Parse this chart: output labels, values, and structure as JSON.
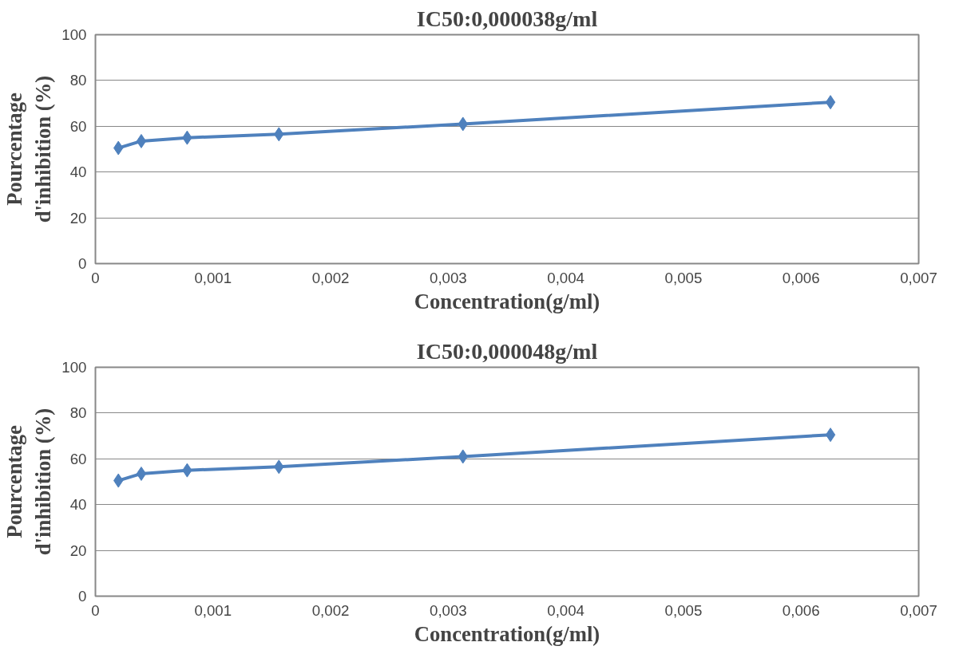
{
  "chart_data": [
    {
      "type": "line",
      "title": "IC50:0,000038g/ml",
      "xlabel": "Concentration(g/ml)",
      "ylabel": "Pourcentage\nd'inhibition (%)",
      "x": [
        0.000195,
        0.00039,
        0.00078,
        0.00156,
        0.003125,
        0.00625
      ],
      "series": [
        {
          "color": "#4f81bd",
          "values": [
            50.5,
            53.5,
            55,
            56.5,
            61,
            70.5
          ]
        }
      ],
      "xlim": [
        0,
        0.007
      ],
      "xticks": [
        0,
        {
          "value": 0.001,
          "label": "0,001"
        },
        {
          "value": 0.002,
          "label": "0,002"
        },
        {
          "value": 0.003,
          "label": "0,003"
        },
        {
          "value": 0.004,
          "label": "0,004"
        },
        {
          "value": 0.005,
          "label": "0,005"
        },
        {
          "value": 0.006,
          "label": "0,006"
        },
        {
          "value": 0.007,
          "label": "0,007"
        }
      ],
      "ylim": [
        0,
        100
      ],
      "yticks": [
        0,
        20,
        40,
        60,
        80,
        100
      ],
      "grid": "y",
      "marker": "diamond",
      "line_style": "solid"
    },
    {
      "type": "line",
      "title": "IC50:0,000048g/ml",
      "xlabel": "Concentration(g/ml)",
      "ylabel": "Pourcentage\nd'inhibition (%)",
      "x": [
        0.000195,
        0.00039,
        0.00078,
        0.00156,
        0.003125,
        0.00625
      ],
      "series": [
        {
          "color": "#4f81bd",
          "values": [
            50.5,
            53.5,
            55,
            56.5,
            61,
            70.5
          ]
        }
      ],
      "xlim": [
        0,
        0.007
      ],
      "xticks": [
        0,
        {
          "value": 0.001,
          "label": "0,001"
        },
        {
          "value": 0.002,
          "label": "0,002"
        },
        {
          "value": 0.003,
          "label": "0,003"
        },
        {
          "value": 0.004,
          "label": "0,004"
        },
        {
          "value": 0.005,
          "label": "0,005"
        },
        {
          "value": 0.006,
          "label": "0,006"
        },
        {
          "value": 0.007,
          "label": "0,007"
        }
      ],
      "ylim": [
        0,
        100
      ],
      "yticks": [
        0,
        20,
        40,
        60,
        80,
        100
      ],
      "grid": "y",
      "marker": "diamond",
      "line_style": "solid"
    }
  ]
}
